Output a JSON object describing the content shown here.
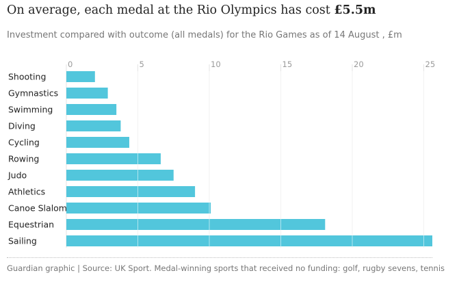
{
  "header": {
    "title_prefix": "On average, each medal at the Rio Olympics has cost ",
    "title_emphasis": "£5.5m",
    "subtitle": "Investment compared with outcome (all medals) for the Rio Games as of 14 August , £m"
  },
  "footer": {
    "source": "Guardian graphic | Source: UK Sport. Medal-winning sports that received no funding: golf, rugby sevens, tennis"
  },
  "colors": {
    "bar": "#52c6dc",
    "axis_label": "#9a9a9a",
    "category_label": "#222222",
    "gridline_on_bar": "#ffffff"
  },
  "chart_data": {
    "type": "bar",
    "orientation": "horizontal",
    "categories": [
      "Shooting",
      "Gymnastics",
      "Swimming",
      "Diving",
      "Cycling",
      "Rowing",
      "Judo",
      "Athletics",
      "Canoe Slalom",
      "Equestrian",
      "Sailing"
    ],
    "values": [
      2.0,
      2.9,
      3.5,
      3.8,
      4.4,
      6.6,
      7.5,
      9.0,
      10.1,
      18.1,
      25.6
    ],
    "xticks": [
      0,
      5,
      10,
      15,
      20,
      25
    ],
    "tick_labels": [
      "0",
      "5",
      "10",
      "15",
      "20",
      "25"
    ],
    "xlim": [
      0,
      25.6
    ],
    "axis_position": "top",
    "grid": true
  }
}
